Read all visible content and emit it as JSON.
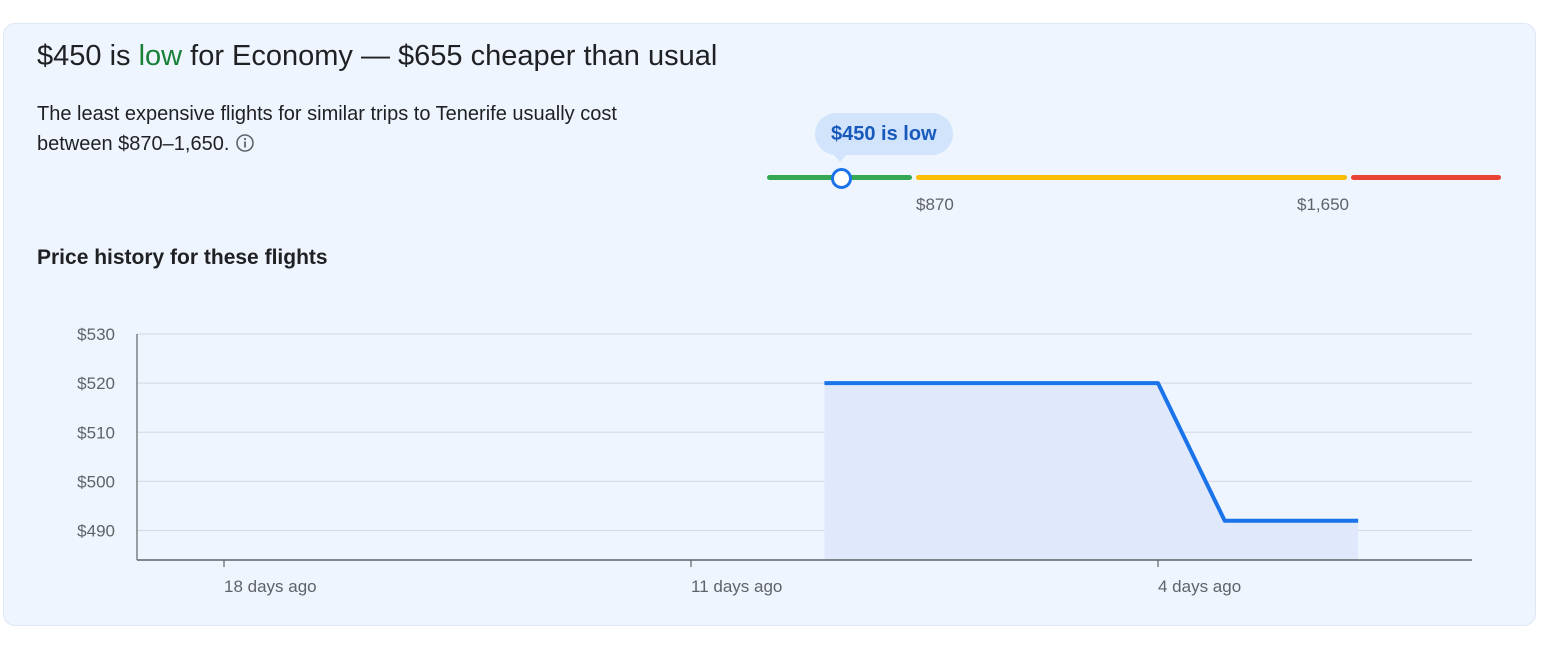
{
  "headline": {
    "price": "$450 is ",
    "level": "low",
    "rest": " for Economy — $655 cheaper than usual"
  },
  "description": "The least expensive flights for similar trips to Tenerife usually cost between $870–1,650.",
  "info_icon": "info-icon",
  "price_range": {
    "bubble_label": "$450 is low",
    "low_threshold_label": "$870",
    "high_threshold_label": "$1,650",
    "current_price": 450,
    "colors": {
      "low": "#34a853",
      "typical": "#fbbc04",
      "high": "#ea4335",
      "marker": "#1a73e8"
    }
  },
  "history": {
    "title": "Price history for these flights"
  },
  "chart_data": {
    "type": "area",
    "title": "Price history for these flights",
    "y_ticks": [
      "$530",
      "$520",
      "$510",
      "$500",
      "$490"
    ],
    "x_ticks": [
      "18 days ago",
      "11 days ago",
      "4 days ago"
    ],
    "ylim": [
      484,
      530
    ],
    "x_days_ago": [
      9,
      4,
      3,
      1
    ],
    "values": [
      520,
      520,
      492,
      492
    ],
    "grid": true,
    "line_color": "#1a73e8",
    "fill_color": "#e0e9fb"
  }
}
